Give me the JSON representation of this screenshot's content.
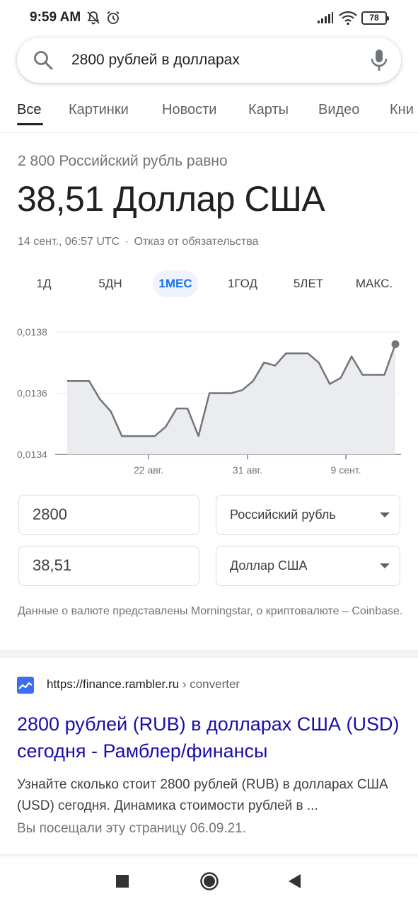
{
  "status": {
    "time": "9:59 AM",
    "battery": "78"
  },
  "search": {
    "query": "2800 рублей в долларах"
  },
  "tabs": [
    "Все",
    "Картинки",
    "Новости",
    "Карты",
    "Видео",
    "Кни"
  ],
  "converter": {
    "subtitle": "2 800 Российский рубль равно",
    "result": "38,51 Доллар США",
    "timestamp": "14 сент., 06:57 UTC",
    "separator": "·",
    "disclaimer_link": "Отказ от обязательства",
    "periods": [
      "1Д",
      "5ДН",
      "1МЕС",
      "1ГОД",
      "5ЛЕТ",
      "МАКС."
    ],
    "active_period": "1МЕС",
    "from_amount": "2800",
    "from_currency": "Российский рубль",
    "to_amount": "38,51",
    "to_currency": "Доллар США",
    "data_source": "Данные о валюте представлены Morningstar, о криптовалюте – Coinbase."
  },
  "chart_data": {
    "type": "area",
    "y_ticks": [
      "0,0138",
      "0,0136",
      "0,0134"
    ],
    "ylim": [
      0.0134,
      0.0138
    ],
    "x_ticks": [
      "22 авг.",
      "31 авг.",
      "9 сент."
    ],
    "values": [
      0.01364,
      0.01364,
      0.01364,
      0.01358,
      0.01354,
      0.01346,
      0.01346,
      0.01346,
      0.01346,
      0.01349,
      0.01355,
      0.01355,
      0.01346,
      0.0136,
      0.0136,
      0.0136,
      0.01361,
      0.01364,
      0.0137,
      0.01369,
      0.01373,
      0.01373,
      0.01373,
      0.0137,
      0.01363,
      0.01365,
      0.01372,
      0.01366,
      0.01366,
      0.01366,
      0.01376
    ],
    "color": "#70757a",
    "fill": "#e8eaed"
  },
  "result_item": {
    "url": "https://finance.rambler.ru",
    "crumb": "› converter",
    "title": "2800 рублей (RUB) в долларах США (USD) сегодня - Рамблер/финансы",
    "snippet": "Узнайте сколько стоит 2800 рублей (RUB) в долларах США (USD) сегодня. Динамика стоимости рублей в ...",
    "visited": "Вы посещали эту страницу 06.09.21."
  },
  "colors": {
    "link": "#1a0dab",
    "accent": "#1a73e8",
    "favicon": "#3d6ef0"
  }
}
